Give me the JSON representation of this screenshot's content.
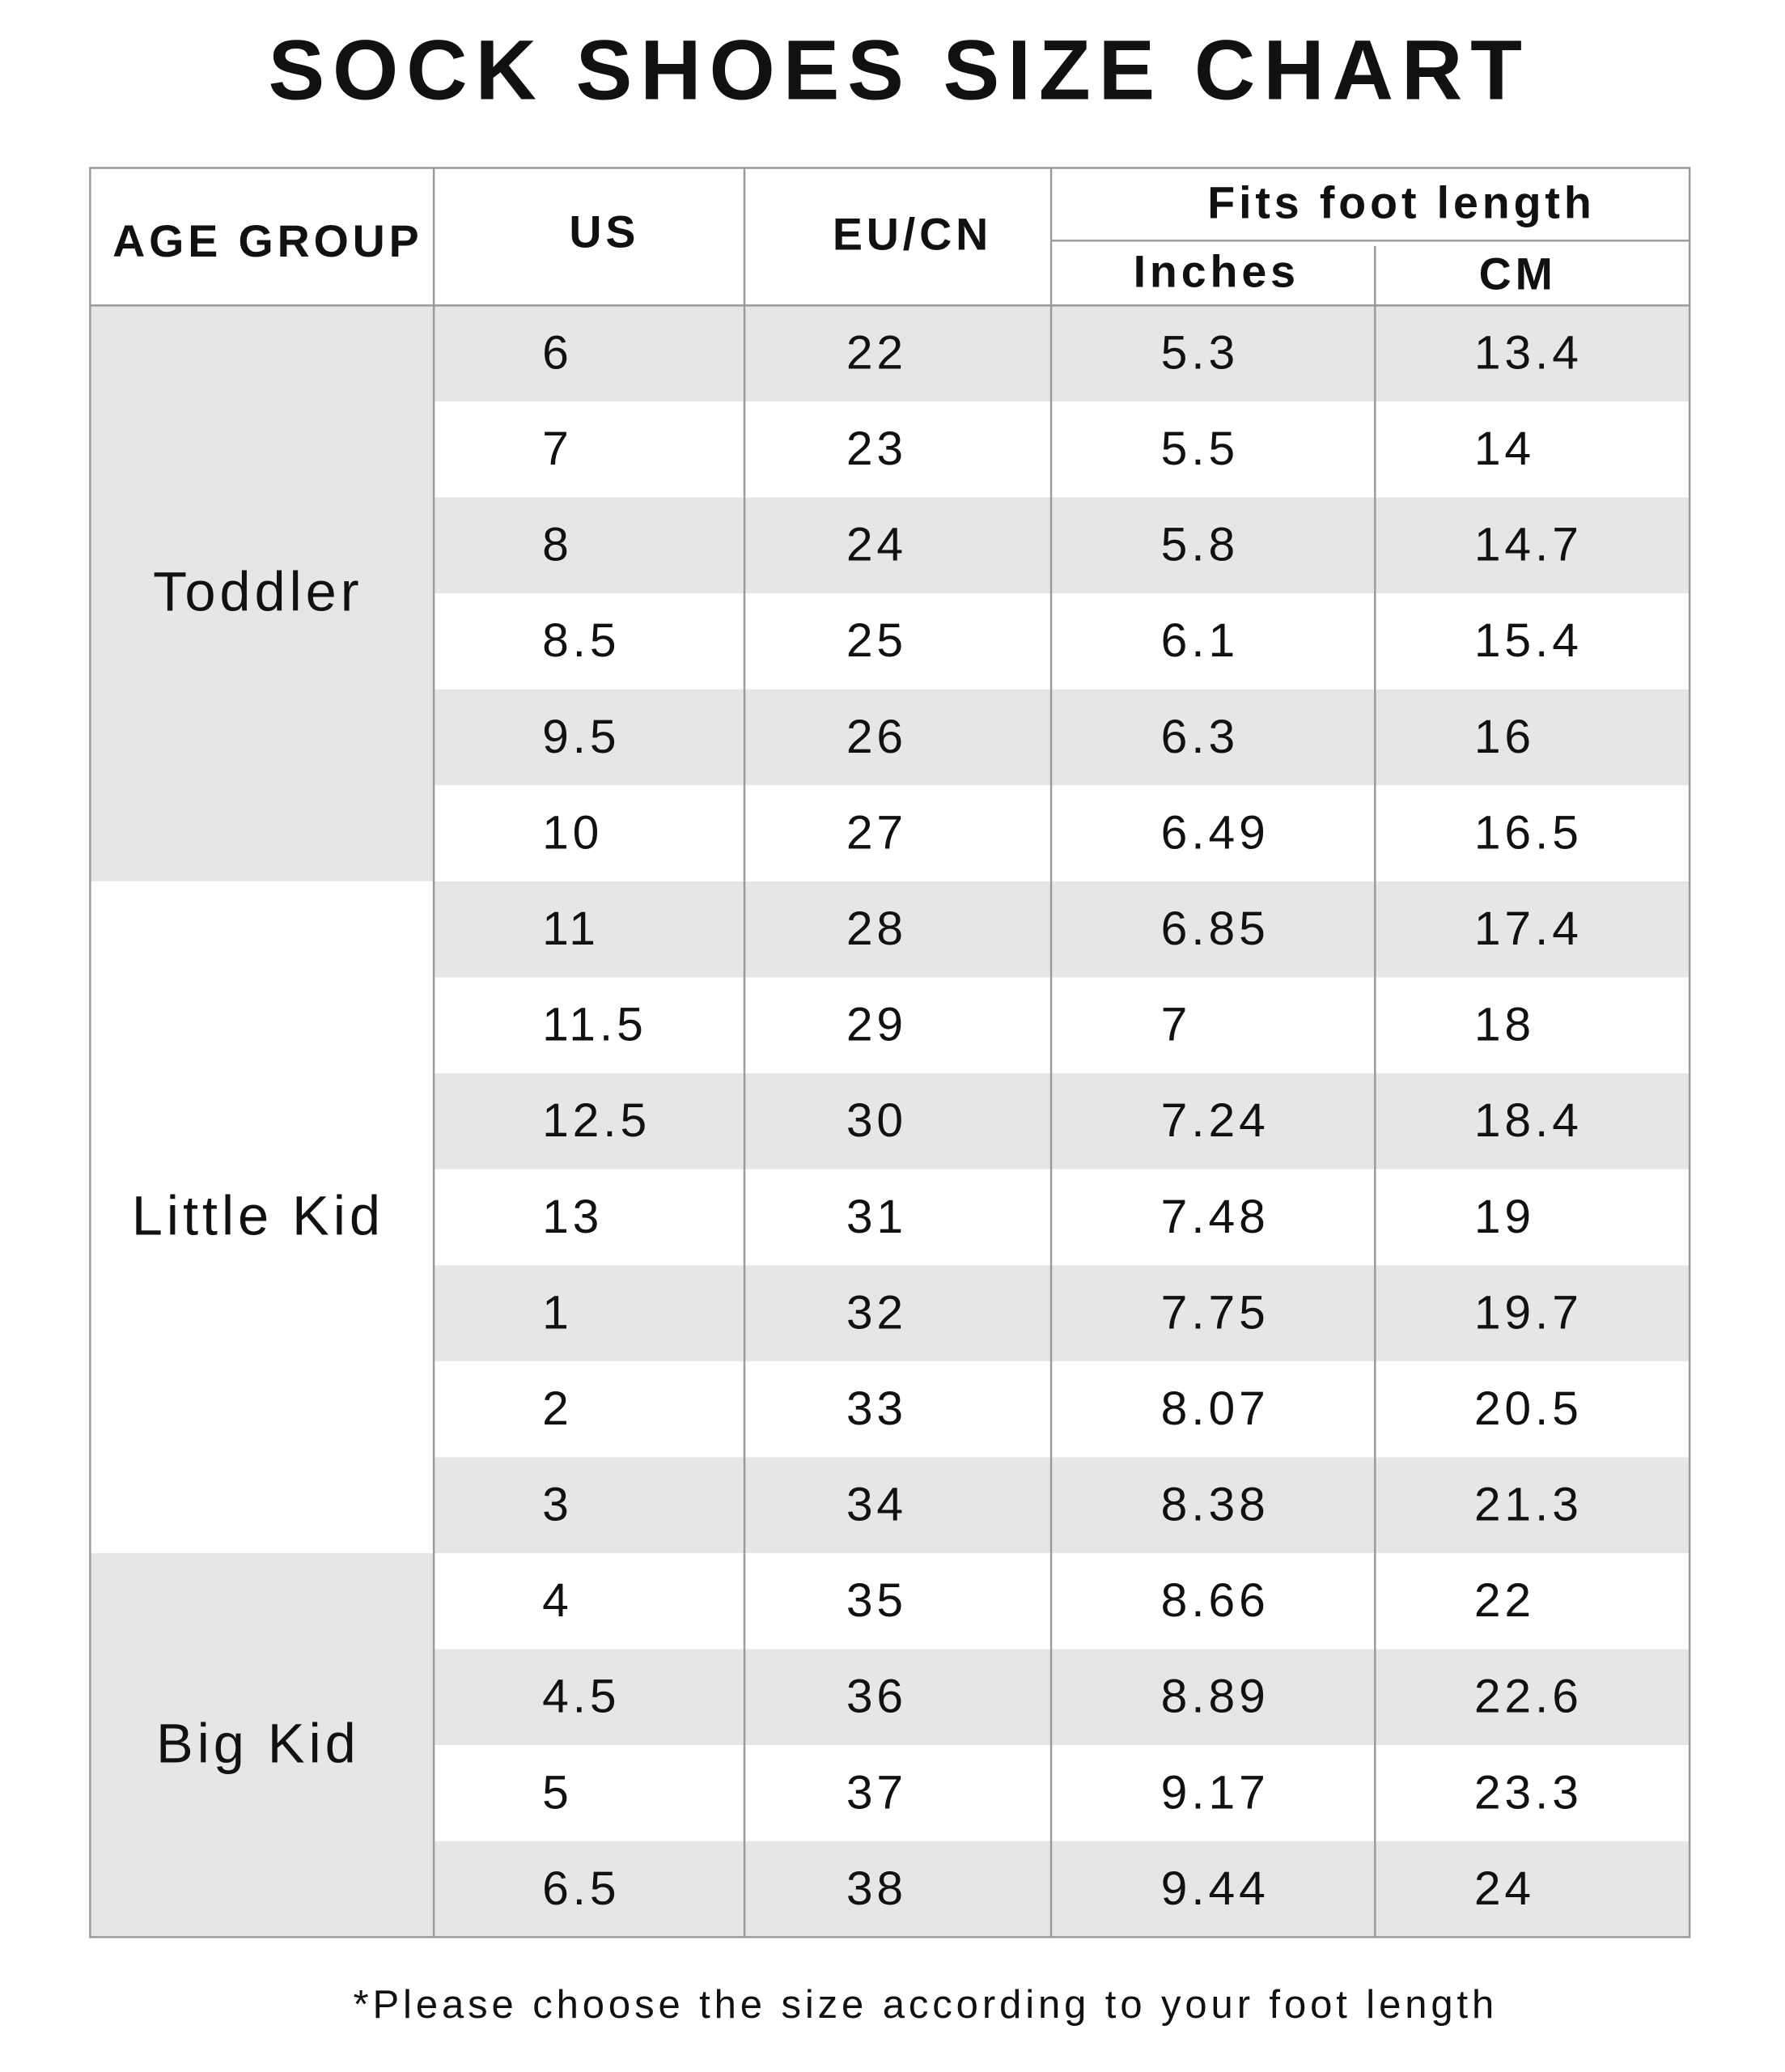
{
  "title": "SOCK SHOES SIZE CHART",
  "header": {
    "age_group": "AGE GROUP",
    "us": "US",
    "eu_cn": "EU/CN",
    "fits_foot_length": "Fits foot length",
    "inches": "Inches",
    "cm": "CM"
  },
  "groups": [
    {
      "label": "Toddler",
      "rows": [
        [
          "6",
          "22",
          "5.3",
          "13.4"
        ],
        [
          "7",
          "23",
          "5.5",
          "14"
        ],
        [
          "8",
          "24",
          "5.8",
          "14.7"
        ],
        [
          "8.5",
          "25",
          "6.1",
          "15.4"
        ],
        [
          "9.5",
          "26",
          "6.3",
          "16"
        ],
        [
          "10",
          "27",
          "6.49",
          "16.5"
        ]
      ]
    },
    {
      "label": "Little Kid",
      "rows": [
        [
          "11",
          "28",
          "6.85",
          "17.4"
        ],
        [
          "11.5",
          "29",
          "7",
          "18"
        ],
        [
          "12.5",
          "30",
          "7.24",
          "18.4"
        ],
        [
          "13",
          "31",
          "7.48",
          "19"
        ],
        [
          "1",
          "32",
          "7.75",
          "19.7"
        ],
        [
          "2",
          "33",
          "8.07",
          "20.5"
        ],
        [
          "3",
          "34",
          "8.38",
          "21.3"
        ]
      ]
    },
    {
      "label": "Big Kid",
      "rows": [
        [
          "4",
          "35",
          "8.66",
          "22"
        ],
        [
          "4.5",
          "36",
          "8.89",
          "22.6"
        ],
        [
          "5",
          "37",
          "9.17",
          "23.3"
        ],
        [
          "6.5",
          "38",
          "9.44",
          "24"
        ]
      ]
    }
  ],
  "footnote": "*Please choose the size according to your foot length"
}
